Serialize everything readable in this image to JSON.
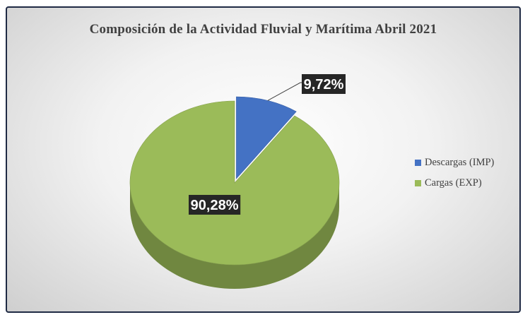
{
  "chart_data": {
    "type": "pie",
    "title": "Composición de la Actividad Fluvial y Marítima Abril 2021",
    "slices": [
      {
        "name": "Descargas (IMP)",
        "value": 9.72,
        "label": "9,72%",
        "color": "#4472c4"
      },
      {
        "name": "Cargas (EXP)",
        "value": 90.28,
        "label": "90,28%",
        "color": "#9bbb59"
      }
    ],
    "exploded_slice": "Descargas (IMP)",
    "legend_position": "right",
    "style": "3d"
  }
}
